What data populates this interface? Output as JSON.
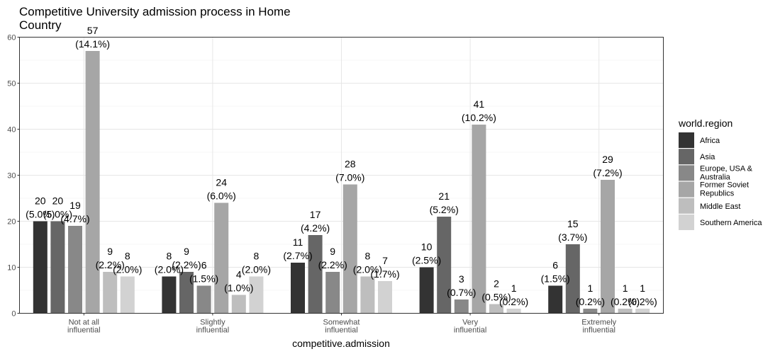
{
  "chart_data": {
    "type": "bar",
    "title_lines": [
      "Competitive University admission process in Home",
      "Country"
    ],
    "xlabel": "competitive.admission",
    "ylabel": "",
    "ylim": [
      0,
      60
    ],
    "yticks": [
      0,
      10,
      20,
      30,
      40,
      50,
      60
    ],
    "grid": true,
    "legend": {
      "title": "world.region",
      "placement": "right"
    },
    "categories": [
      [
        "Not at all",
        "influential"
      ],
      [
        "Slightly",
        "influential"
      ],
      [
        "Somewhat",
        "influential"
      ],
      [
        "Very",
        "influential"
      ],
      [
        "Extremely",
        "influential"
      ]
    ],
    "series": [
      {
        "name_lines": [
          "Africa"
        ],
        "color": "#333333",
        "values": [
          20,
          8,
          11,
          10,
          6
        ],
        "pct": [
          "(5.0%)",
          "(2.0%)",
          "(2.7%)",
          "(2.5%)",
          "(1.5%)"
        ]
      },
      {
        "name_lines": [
          "Asia"
        ],
        "color": "#666666",
        "values": [
          20,
          9,
          17,
          21,
          15
        ],
        "pct": [
          "(5.0%)",
          "(2.2%)",
          "(4.2%)",
          "(5.2%)",
          "(3.7%)"
        ]
      },
      {
        "name_lines": [
          "Europe, USA &",
          "Australia"
        ],
        "color": "#888888",
        "values": [
          19,
          6,
          9,
          3,
          1
        ],
        "pct": [
          "(4.7%)",
          "(1.5%)",
          "(2.2%)",
          "(0.7%)",
          "(0.2%)"
        ]
      },
      {
        "name_lines": [
          "Former Soviet",
          "Republics"
        ],
        "color": "#a6a6a6",
        "values": [
          57,
          24,
          28,
          41,
          29
        ],
        "pct": [
          "(14.1%)",
          "(6.0%)",
          "(7.0%)",
          "(10.2%)",
          "(7.2%)"
        ]
      },
      {
        "name_lines": [
          "Middle East"
        ],
        "color": "#bebebe",
        "values": [
          9,
          4,
          8,
          2,
          1
        ],
        "pct": [
          "(2.2%)",
          "(1.0%)",
          "(2.0%)",
          "(0.5%)",
          "(0.2%)"
        ]
      },
      {
        "name_lines": [
          "Southern America"
        ],
        "color": "#d2d2d2",
        "values": [
          8,
          8,
          7,
          1,
          1
        ],
        "pct": [
          "(2.0%)",
          "(2.0%)",
          "(1.7%)",
          "(0.2%)",
          "(0.2%)"
        ]
      }
    ]
  }
}
